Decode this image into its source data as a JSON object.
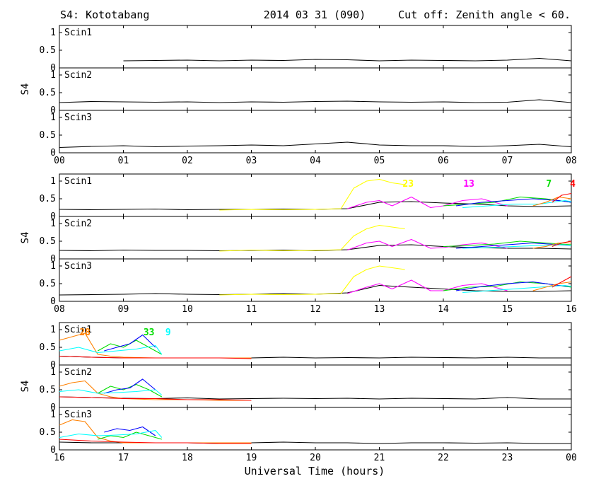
{
  "header": {
    "station": "S4: Kototabang",
    "date": "2014 03 31 (090)",
    "cutoff": "Cut off: Zenith angle < 60."
  },
  "chart_data": {
    "type": "line",
    "ylabel": "S4",
    "xlabel": "Universal Time (hours)",
    "ylim": [
      0,
      1.2
    ],
    "yticks": [
      "0",
      "0.5",
      "1"
    ],
    "panel_labels": [
      "Scin1",
      "Scin2",
      "Scin3"
    ],
    "groups": [
      {
        "x_range": [
          0,
          8
        ],
        "xtick_labels": [
          "00",
          "01",
          "02",
          "03",
          "04",
          "05",
          "06",
          "07",
          "08"
        ],
        "prn_labels": [],
        "series": [
          {
            "name": "",
            "color": "#000000",
            "x": [
              1.0,
              1.5,
              2.0,
              2.5,
              3.0,
              3.5,
              4.0,
              4.5,
              5.0,
              5.5,
              6.0,
              6.5,
              7.0,
              7.5,
              8.0
            ],
            "scin1": [
              0.2,
              0.21,
              0.22,
              0.2,
              0.22,
              0.21,
              0.24,
              0.23,
              0.2,
              0.22,
              0.21,
              0.2,
              0.22,
              0.27,
              0.2
            ],
            "scin2": null,
            "scin3": null
          },
          {
            "name": "",
            "color": "#000000",
            "x": [
              0.0,
              0.5,
              1.0,
              1.5,
              2.0,
              2.5,
              3.0,
              3.5,
              4.0,
              4.5,
              5.0,
              5.5,
              6.0,
              6.5,
              7.0,
              7.5,
              8.0
            ],
            "scin1": null,
            "scin2": [
              0.22,
              0.25,
              0.24,
              0.23,
              0.24,
              0.22,
              0.24,
              0.23,
              0.25,
              0.26,
              0.24,
              0.23,
              0.24,
              0.22,
              0.23,
              0.3,
              0.22
            ],
            "scin3": [
              0.15,
              0.18,
              0.2,
              0.17,
              0.19,
              0.2,
              0.22,
              0.2,
              0.25,
              0.3,
              0.22,
              0.2,
              0.2,
              0.18,
              0.2,
              0.24,
              0.17
            ]
          }
        ]
      },
      {
        "x_range": [
          8,
          16
        ],
        "xtick_labels": [
          "08",
          "09",
          "10",
          "11",
          "12",
          "13",
          "14",
          "15",
          "16"
        ],
        "prn_labels": [
          {
            "text": "23",
            "color": "#ffff00",
            "x": 13.45
          },
          {
            "text": "13",
            "color": "#ff00ff",
            "x": 14.4
          },
          {
            "text": "7",
            "color": "#00dd00",
            "x": 15.65
          },
          {
            "text": "4",
            "color": "#ff0000",
            "x": 16.05
          }
        ],
        "series": [
          {
            "name": "",
            "color": "#000000",
            "x": [
              8.0,
              8.5,
              9.0,
              9.5,
              10.0,
              10.5,
              11.0,
              11.5,
              12.0,
              12.5,
              13.0,
              13.5,
              14.0,
              14.5,
              15.0,
              15.5,
              16.0
            ],
            "scin1": [
              0.2,
              0.19,
              0.2,
              0.21,
              0.19,
              0.2,
              0.2,
              0.21,
              0.2,
              0.22,
              0.4,
              0.42,
              0.38,
              0.35,
              0.3,
              0.28,
              0.3
            ],
            "scin2": [
              0.24,
              0.23,
              0.25,
              0.24,
              0.24,
              0.23,
              0.24,
              0.25,
              0.23,
              0.26,
              0.38,
              0.4,
              0.35,
              0.32,
              0.3,
              0.3,
              0.28
            ],
            "scin3": [
              0.18,
              0.19,
              0.2,
              0.22,
              0.2,
              0.19,
              0.2,
              0.22,
              0.2,
              0.24,
              0.45,
              0.4,
              0.35,
              0.3,
              0.28,
              0.28,
              0.3
            ]
          },
          {
            "name": "",
            "color": "#ffff00",
            "x": [
              10.5,
              11.0,
              11.5,
              12.0,
              12.4,
              12.6,
              12.8,
              13.0,
              13.2,
              13.4
            ],
            "scin1": [
              0.18,
              0.2,
              0.19,
              0.2,
              0.22,
              0.8,
              1.0,
              1.05,
              0.95,
              0.9
            ],
            "scin2": [
              0.22,
              0.25,
              0.23,
              0.24,
              0.26,
              0.65,
              0.85,
              0.95,
              0.9,
              0.85
            ],
            "scin3": [
              0.18,
              0.2,
              0.19,
              0.2,
              0.22,
              0.7,
              0.9,
              1.0,
              0.95,
              0.9
            ]
          },
          {
            "name": "",
            "color": "#ff00ff",
            "x": [
              12.5,
              12.8,
              13.0,
              13.2,
              13.5,
              13.8,
              14.0,
              14.3,
              14.6,
              15.0
            ],
            "scin1": [
              0.22,
              0.4,
              0.45,
              0.3,
              0.55,
              0.25,
              0.3,
              0.45,
              0.5,
              0.3
            ],
            "scin2": [
              0.25,
              0.45,
              0.5,
              0.35,
              0.55,
              0.3,
              0.32,
              0.4,
              0.45,
              0.3
            ],
            "scin3": [
              0.22,
              0.4,
              0.5,
              0.35,
              0.6,
              0.3,
              0.3,
              0.45,
              0.5,
              0.3
            ]
          },
          {
            "name": "",
            "color": "#00dd00",
            "x": [
              14.0,
              14.4,
              14.8,
              15.2,
              15.6,
              16.0
            ],
            "scin1": [
              0.3,
              0.35,
              0.4,
              0.55,
              0.5,
              0.4
            ],
            "scin2": [
              0.35,
              0.38,
              0.42,
              0.5,
              0.45,
              0.4
            ],
            "scin3": [
              0.3,
              0.4,
              0.42,
              0.55,
              0.5,
              0.4
            ]
          },
          {
            "name": "",
            "color": "#0000ff",
            "x": [
              14.2,
              14.6,
              15.0,
              15.4,
              15.8,
              16.0
            ],
            "scin1": [
              0.3,
              0.4,
              0.45,
              0.5,
              0.45,
              0.4
            ],
            "scin2": [
              0.3,
              0.35,
              0.4,
              0.45,
              0.4,
              0.38
            ],
            "scin3": [
              0.3,
              0.42,
              0.5,
              0.55,
              0.45,
              0.42
            ]
          },
          {
            "name": "",
            "color": "#00ffff",
            "x": [
              14.3,
              14.7,
              15.1,
              15.5,
              15.9,
              16.0
            ],
            "scin1": [
              0.25,
              0.3,
              0.35,
              0.35,
              0.45,
              0.42
            ],
            "scin2": [
              0.3,
              0.32,
              0.35,
              0.38,
              0.4,
              0.38
            ],
            "scin3": [
              0.25,
              0.3,
              0.35,
              0.4,
              0.45,
              0.42
            ]
          },
          {
            "name": "",
            "color": "#ff8000",
            "x": [
              15.4,
              15.6,
              15.8,
              16.0
            ],
            "scin1": [
              0.3,
              0.4,
              0.55,
              0.5
            ],
            "scin2": [
              0.3,
              0.35,
              0.45,
              0.45
            ],
            "scin3": [
              0.3,
              0.4,
              0.5,
              0.55
            ]
          },
          {
            "name": "",
            "color": "#ff0000",
            "x": [
              15.7,
              15.85,
              16.0
            ],
            "scin1": [
              0.4,
              0.6,
              0.65
            ],
            "scin2": [
              0.35,
              0.45,
              0.5
            ],
            "scin3": [
              0.4,
              0.55,
              0.7
            ]
          }
        ]
      },
      {
        "x_range": [
          16,
          24
        ],
        "xtick_labels": [
          "16",
          "17",
          "18",
          "19",
          "20",
          "21",
          "22",
          "23",
          "00"
        ],
        "prn_labels": [
          {
            "text": "28",
            "color": "#ff8000",
            "x": 16.4
          },
          {
            "text": "33",
            "color": "#00dd00",
            "x": 17.4
          },
          {
            "text": "9",
            "color": "#00ffff",
            "x": 17.7
          }
        ],
        "series": [
          {
            "name": "",
            "color": "#000000",
            "x": [
              16.0,
              16.5,
              17.0,
              17.5,
              18.0,
              18.5,
              19.0,
              19.5,
              20.0,
              20.5,
              21.0,
              21.5,
              22.0,
              22.5,
              23.0,
              23.5,
              24.0
            ],
            "scin1": [
              0.25,
              0.22,
              0.2,
              0.2,
              0.2,
              0.2,
              0.2,
              0.22,
              0.2,
              0.21,
              0.2,
              0.22,
              0.21,
              0.2,
              0.22,
              0.2,
              0.2
            ],
            "scin2": [
              0.3,
              0.28,
              0.26,
              0.25,
              0.27,
              0.24,
              0.25,
              0.26,
              0.25,
              0.26,
              0.24,
              0.26,
              0.25,
              0.24,
              0.28,
              0.24,
              0.24
            ],
            "scin3": [
              0.22,
              0.2,
              0.2,
              0.2,
              0.2,
              0.18,
              0.2,
              0.22,
              0.2,
              0.2,
              0.18,
              0.2,
              0.2,
              0.19,
              0.2,
              0.18,
              0.18
            ]
          },
          {
            "name": "",
            "color": "#ff8000",
            "x": [
              16.0,
              16.2,
              16.4,
              16.6,
              16.8,
              17.0,
              17.5,
              18.0,
              18.5,
              19.0
            ],
            "scin1": [
              0.7,
              0.8,
              0.9,
              0.3,
              0.25,
              0.22,
              0.2,
              0.2,
              0.2,
              0.2
            ],
            "scin2": [
              0.6,
              0.7,
              0.75,
              0.4,
              0.3,
              0.25,
              0.22,
              0.22,
              0.2,
              0.2
            ],
            "scin3": [
              0.7,
              0.85,
              0.8,
              0.35,
              0.25,
              0.2,
              0.2,
              0.2,
              0.2,
              0.2
            ]
          },
          {
            "name": "",
            "color": "#00dd00",
            "x": [
              16.6,
              16.8,
              17.0,
              17.2,
              17.4,
              17.6
            ],
            "scin1": [
              0.4,
              0.6,
              0.5,
              0.7,
              0.5,
              0.3
            ],
            "scin2": [
              0.4,
              0.6,
              0.5,
              0.65,
              0.5,
              0.3
            ],
            "scin3": [
              0.3,
              0.4,
              0.35,
              0.5,
              0.4,
              0.3
            ]
          },
          {
            "name": "",
            "color": "#0000ff",
            "x": [
              16.7,
              16.9,
              17.1,
              17.3,
              17.5
            ],
            "scin1": [
              0.4,
              0.5,
              0.6,
              0.85,
              0.5
            ],
            "scin2": [
              0.4,
              0.5,
              0.55,
              0.8,
              0.5
            ],
            "scin3": [
              0.5,
              0.6,
              0.55,
              0.65,
              0.4
            ]
          },
          {
            "name": "",
            "color": "#00ffff",
            "x": [
              16.0,
              16.3,
              16.6,
              16.9,
              17.2,
              17.5,
              17.6
            ],
            "scin1": [
              0.4,
              0.5,
              0.35,
              0.4,
              0.45,
              0.55,
              0.3
            ],
            "scin2": [
              0.45,
              0.5,
              0.4,
              0.42,
              0.45,
              0.5,
              0.35
            ],
            "scin3": [
              0.35,
              0.45,
              0.4,
              0.42,
              0.45,
              0.55,
              0.35
            ]
          },
          {
            "name": "",
            "color": "#ff0000",
            "x": [
              16.0,
              16.5,
              17.0,
              17.5,
              18.0,
              18.5,
              19.0
            ],
            "scin1": [
              0.25,
              0.22,
              0.2,
              0.2,
              0.2,
              0.2,
              0.18
            ],
            "scin2": [
              0.3,
              0.28,
              0.25,
              0.25,
              0.22,
              0.22,
              0.2
            ],
            "scin3": [
              0.3,
              0.25,
              0.22,
              0.2,
              0.2,
              0.18,
              0.18
            ]
          }
        ]
      }
    ]
  }
}
